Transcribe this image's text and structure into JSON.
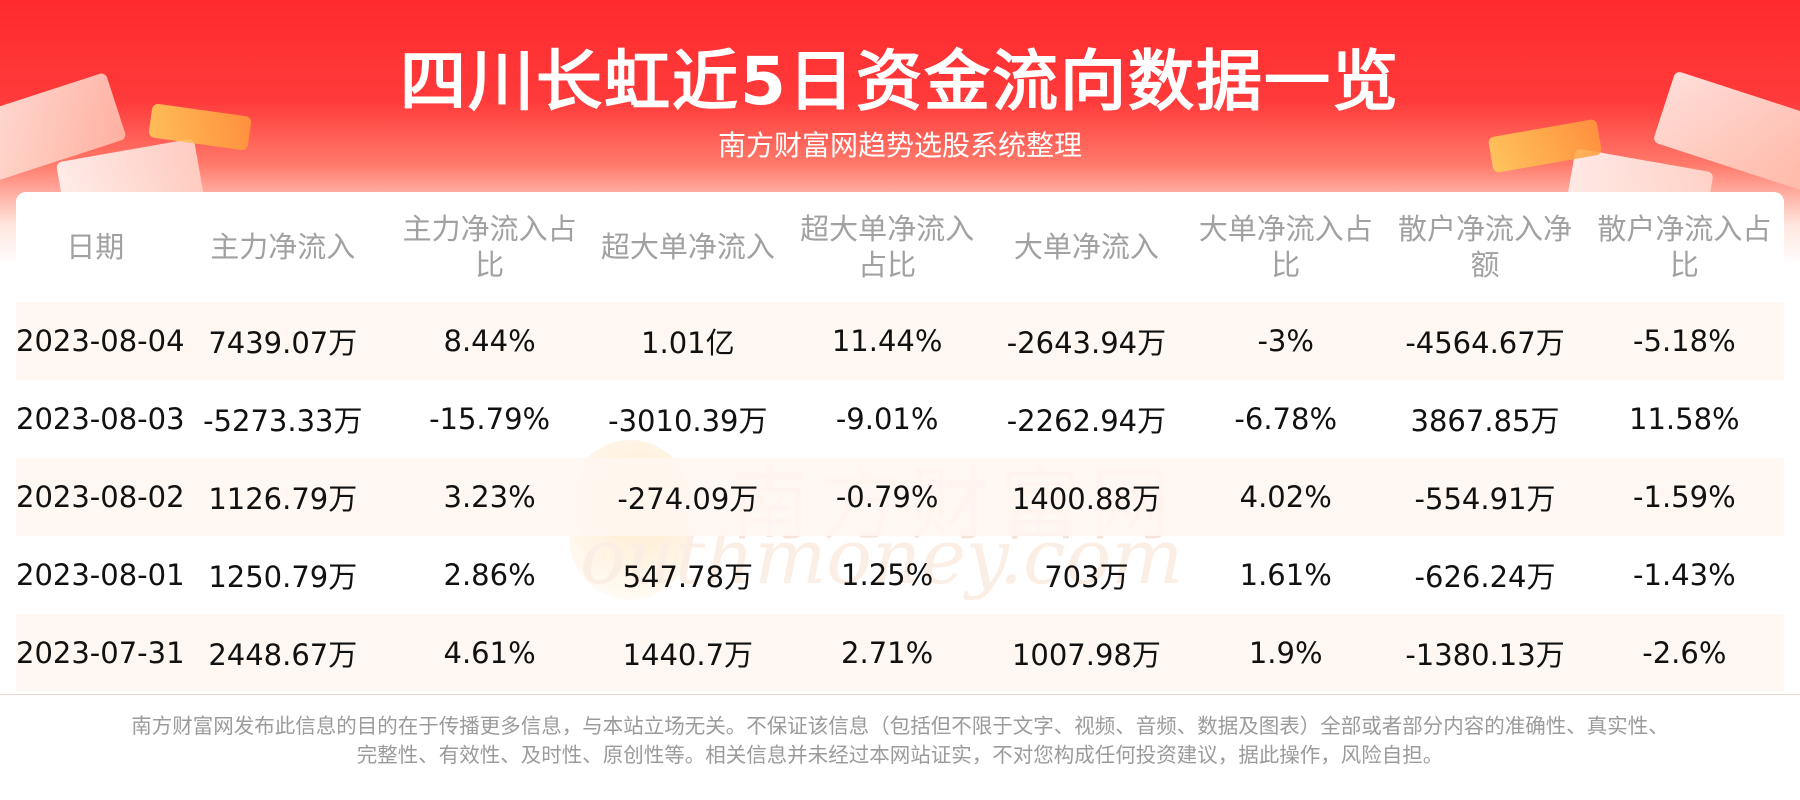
{
  "header": {
    "title": "四川长虹近5日资金流向数据一览",
    "subtitle": "南方财富网趋势选股系统整理"
  },
  "watermark": {
    "cn": "南方财富网",
    "en": "outhmoney.com"
  },
  "table": {
    "columns": [
      "日期",
      "主力净流入",
      "主力净流入占比",
      "超大单净流入",
      "超大单净流入占比",
      "大单净流入",
      "大单净流入占比",
      "散户净流入净额",
      "散户净流入占比"
    ],
    "rows": [
      [
        "2023-08-04",
        "7439.07万",
        "8.44%",
        "1.01亿",
        "11.44%",
        "-2643.94万",
        "-3%",
        "-4564.67万",
        "-5.18%"
      ],
      [
        "2023-08-03",
        "-5273.33万",
        "-15.79%",
        "-3010.39万",
        "-9.01%",
        "-2262.94万",
        "-6.78%",
        "3867.85万",
        "11.58%"
      ],
      [
        "2023-08-02",
        "1126.79万",
        "3.23%",
        "-274.09万",
        "-0.79%",
        "1400.88万",
        "4.02%",
        "-554.91万",
        "-1.59%"
      ],
      [
        "2023-08-01",
        "1250.79万",
        "2.86%",
        "547.78万",
        "1.25%",
        "703万",
        "1.61%",
        "-626.24万",
        "-1.43%"
      ],
      [
        "2023-07-31",
        "2448.67万",
        "4.61%",
        "1440.7万",
        "2.71%",
        "1007.98万",
        "1.9%",
        "-1380.13万",
        "-2.6%"
      ]
    ]
  },
  "footer": {
    "line1": "南方财富网发布此信息的目的在于传播更多信息，与本站立场无关。不保证该信息（包括但不限于文字、视频、音频、数据及图表）全部或者部分内容的准确性、真实性、",
    "line2": "完整性、有效性、及时性、原创性等。相关信息并未经过本网站证实，不对您构成任何投资建议，据此操作，风险自担。"
  },
  "colors": {
    "header_red": "#ff2a2e",
    "row_stripe": "#fff6f0",
    "header_text": "#a1a1a1",
    "footer_text": "#9b9b9b"
  }
}
